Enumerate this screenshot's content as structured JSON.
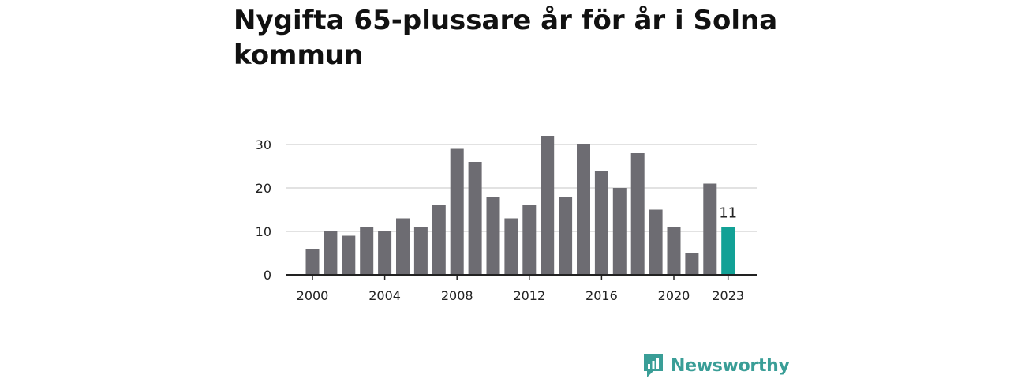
{
  "title": "Nygifta 65-plussare år för år i Solna kommun",
  "brand": {
    "name": "Newsworthy",
    "icon": "newsworthy-logo-icon",
    "color": "#3a9e97"
  },
  "chart_data": {
    "type": "bar",
    "title": "Nygifta 65-plussare år för år i Solna kommun",
    "xlabel": "",
    "ylabel": "",
    "ylim": [
      0,
      30
    ],
    "yticks": [
      0,
      10,
      20,
      30
    ],
    "xticks": [
      "2000",
      "2004",
      "2008",
      "2012",
      "2016",
      "2020",
      "2023"
    ],
    "grid": true,
    "categories": [
      "2000",
      "2001",
      "2002",
      "2003",
      "2004",
      "2005",
      "2006",
      "2007",
      "2008",
      "2009",
      "2010",
      "2011",
      "2012",
      "2013",
      "2014",
      "2015",
      "2016",
      "2017",
      "2018",
      "2019",
      "2020",
      "2021",
      "2022",
      "2023"
    ],
    "values": [
      6,
      10,
      9,
      11,
      10,
      13,
      11,
      16,
      29,
      26,
      18,
      13,
      16,
      32,
      18,
      30,
      24,
      20,
      28,
      15,
      11,
      5,
      21,
      11
    ],
    "highlight": {
      "category": "2023",
      "label": "11"
    },
    "colors": {
      "bar": "#6d6c72",
      "highlight": "#12a196",
      "grid": "#d9d9d9",
      "axis": "#222222"
    }
  }
}
